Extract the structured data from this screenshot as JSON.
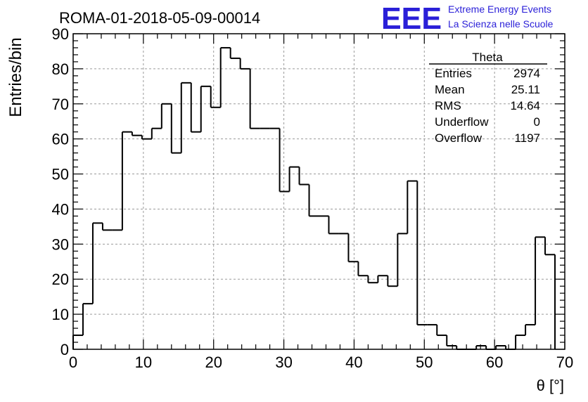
{
  "header": {
    "run_title": "ROMA-01-2018-05-09-00014",
    "logo_mark": "EEE",
    "logo_line1": "Extreme Energy Events",
    "logo_line2": "La Scienza nelle Scuole",
    "logo_color": "#2a1fd8"
  },
  "stats": {
    "title": "Theta",
    "rows": [
      {
        "label": "Entries",
        "value": "2974"
      },
      {
        "label": "Mean",
        "value": "25.11"
      },
      {
        "label": "RMS",
        "value": "14.64"
      },
      {
        "label": "Underflow",
        "value": "0"
      },
      {
        "label": "Overflow",
        "value": "1197"
      }
    ]
  },
  "chart_data": {
    "type": "bar",
    "histogram": true,
    "xlabel": "θ [°]",
    "ylabel": "Entries/bin",
    "xlim": [
      0,
      70
    ],
    "ylim": [
      0,
      90
    ],
    "grid": true,
    "xticks": [
      0,
      10,
      20,
      30,
      40,
      50,
      60,
      70
    ],
    "yticks": [
      0,
      10,
      20,
      30,
      40,
      50,
      60,
      70,
      80,
      90
    ],
    "bin_edges": [
      0,
      1.4,
      2.8,
      4.2,
      5.6,
      7.0,
      8.4,
      9.8,
      11.2,
      12.6,
      14.0,
      15.4,
      16.8,
      18.2,
      19.6,
      21.0,
      22.4,
      23.8,
      25.2,
      26.6,
      28.0,
      29.4,
      30.8,
      32.2,
      33.6,
      35.0,
      36.4,
      37.8,
      39.2,
      40.6,
      42.0,
      43.4,
      44.8,
      46.2,
      47.6,
      49.0,
      50.4,
      51.8,
      53.2,
      54.6,
      56.0,
      57.4,
      58.8,
      60.2,
      61.6,
      63.0,
      64.4,
      65.8,
      67.2,
      68.6
    ],
    "values": [
      4,
      13,
      36,
      34,
      34,
      62,
      61,
      60,
      63,
      70,
      56,
      76,
      62,
      75,
      69,
      86,
      83,
      80,
      63,
      63,
      63,
      45,
      52,
      47,
      38,
      38,
      33,
      33,
      25,
      21,
      19,
      21,
      18,
      33,
      48,
      7,
      7,
      4,
      1,
      0,
      0,
      1,
      0,
      1,
      0,
      4,
      7,
      32,
      27
    ],
    "line_color": "#000000"
  }
}
